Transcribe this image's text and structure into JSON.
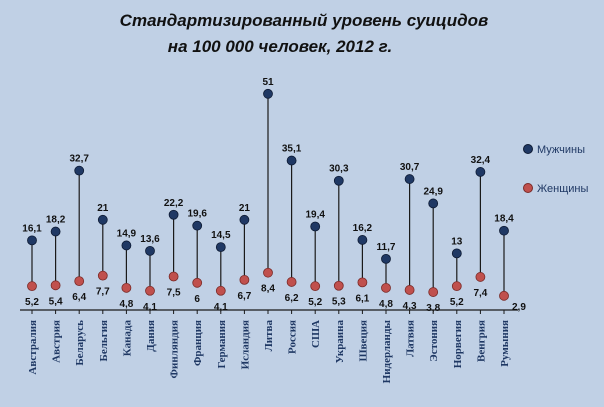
{
  "chart_data": {
    "type": "scatter",
    "title": "Стандартизированный  уровень  суицидов",
    "subtitle": "на 100 000 человек,  2012 г.",
    "categories": [
      "Австралия",
      "Австрия",
      "Беларусь",
      "Бельгия",
      "Канада",
      "Дания",
      "Финляндия",
      "Франция",
      "Германия",
      "Исландия",
      "Литва",
      "Россия",
      "США",
      "Украина",
      "Швеция",
      "Нидерланды",
      "Латвия",
      "Эстония",
      "Норвегия",
      "Венгрия",
      "Румыния"
    ],
    "series": [
      {
        "name": "Мужчины",
        "color": "#1f3864",
        "values": [
          16.1,
          18.2,
          32.7,
          21,
          14.9,
          13.6,
          22.2,
          19.6,
          14.5,
          21,
          51,
          35.1,
          19.4,
          30.3,
          16.2,
          11.7,
          30.7,
          24.9,
          13,
          32.4,
          18.4
        ],
        "labels": [
          "16,1",
          "18,2",
          "32,7",
          "21",
          "14,9",
          "13,6",
          "22,2",
          "19,6",
          "14,5",
          "21",
          "51",
          "35,1",
          "19,4",
          "30,3",
          "16,2",
          "11,7",
          "30,7",
          "24,9",
          "13",
          "32,4",
          "18,4"
        ]
      },
      {
        "name": "Женщины",
        "color": "#c0504d",
        "values": [
          5.2,
          5.4,
          6.4,
          7.7,
          4.8,
          4.1,
          7.5,
          6,
          4.1,
          6.7,
          8.4,
          6.2,
          5.2,
          5.3,
          6.1,
          4.8,
          4.3,
          3.8,
          5.2,
          7.4,
          2.9
        ],
        "labels": [
          "5,2",
          "5,4",
          "6,4",
          "7,7",
          "4,8",
          "4,1",
          "7,5",
          "6",
          "4,1",
          "6,7",
          "8,4",
          "6,2",
          "5,2",
          "5,3",
          "6,1",
          "4,8",
          "4,3",
          "3,8",
          "5,2",
          "7,4",
          "2,9"
        ]
      }
    ],
    "ylim": [
      0,
      55
    ],
    "legend": "right"
  }
}
